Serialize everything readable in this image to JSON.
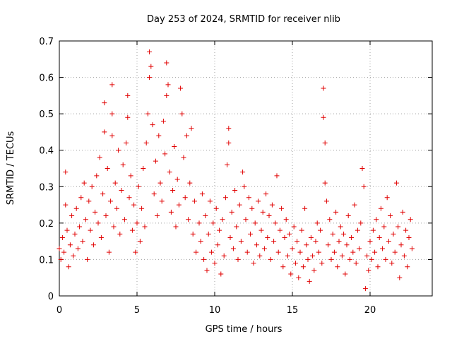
{
  "chart_data": {
    "type": "scatter",
    "title": "Day 253 of 2024, SRMTID for receiver nlib",
    "xlabel": "GPS time / hours",
    "ylabel": "SRMTID / TECUs",
    "xlim": [
      0,
      24
    ],
    "ylim": [
      0,
      0.7
    ],
    "xticks": [
      0,
      5,
      10,
      15,
      20
    ],
    "yticks": [
      0,
      0.1,
      0.2,
      0.3,
      0.4,
      0.5,
      0.6,
      0.7
    ],
    "xtick_labels": [
      "0",
      "5",
      "10",
      "15",
      "20"
    ],
    "ytick_labels": [
      "0",
      "0.1",
      "0.2",
      "0.3",
      "0.4",
      "0.5",
      "0.6",
      "0.7"
    ],
    "grid": true,
    "marker": "plus",
    "color": "#e00000",
    "series": [
      {
        "name": "SRMTID",
        "points": [
          [
            0.0,
            0.13
          ],
          [
            0.1,
            0.1
          ],
          [
            0.2,
            0.16
          ],
          [
            0.3,
            0.12
          ],
          [
            0.4,
            0.34
          ],
          [
            0.4,
            0.25
          ],
          [
            0.5,
            0.18
          ],
          [
            0.6,
            0.08
          ],
          [
            0.7,
            0.14
          ],
          [
            0.8,
            0.22
          ],
          [
            0.9,
            0.11
          ],
          [
            1.0,
            0.17
          ],
          [
            1.1,
            0.24
          ],
          [
            1.2,
            0.13
          ],
          [
            1.3,
            0.19
          ],
          [
            1.4,
            0.27
          ],
          [
            1.5,
            0.15
          ],
          [
            1.6,
            0.31
          ],
          [
            1.7,
            0.21
          ],
          [
            1.8,
            0.1
          ],
          [
            1.9,
            0.26
          ],
          [
            2.0,
            0.18
          ],
          [
            2.1,
            0.3
          ],
          [
            2.2,
            0.14
          ],
          [
            2.3,
            0.23
          ],
          [
            2.4,
            0.33
          ],
          [
            2.5,
            0.2
          ],
          [
            2.6,
            0.38
          ],
          [
            2.7,
            0.16
          ],
          [
            2.8,
            0.28
          ],
          [
            2.9,
            0.45
          ],
          [
            2.9,
            0.53
          ],
          [
            3.0,
            0.22
          ],
          [
            3.1,
            0.35
          ],
          [
            3.2,
            0.12
          ],
          [
            3.3,
            0.26
          ],
          [
            3.4,
            0.5
          ],
          [
            3.4,
            0.58
          ],
          [
            3.4,
            0.44
          ],
          [
            3.5,
            0.19
          ],
          [
            3.6,
            0.31
          ],
          [
            3.7,
            0.24
          ],
          [
            3.8,
            0.4
          ],
          [
            3.9,
            0.17
          ],
          [
            4.0,
            0.29
          ],
          [
            4.1,
            0.36
          ],
          [
            4.2,
            0.21
          ],
          [
            4.3,
            0.42
          ],
          [
            4.4,
            0.49
          ],
          [
            4.4,
            0.55
          ],
          [
            4.5,
            0.27
          ],
          [
            4.6,
            0.33
          ],
          [
            4.7,
            0.18
          ],
          [
            4.8,
            0.25
          ],
          [
            4.9,
            0.12
          ],
          [
            5.0,
            0.2
          ],
          [
            5.1,
            0.3
          ],
          [
            5.2,
            0.15
          ],
          [
            5.3,
            0.24
          ],
          [
            5.4,
            0.35
          ],
          [
            5.5,
            0.19
          ],
          [
            5.6,
            0.42
          ],
          [
            5.7,
            0.5
          ],
          [
            5.8,
            0.6
          ],
          [
            5.8,
            0.67
          ],
          [
            5.9,
            0.63
          ],
          [
            6.0,
            0.47
          ],
          [
            6.1,
            0.28
          ],
          [
            6.2,
            0.37
          ],
          [
            6.3,
            0.22
          ],
          [
            6.4,
            0.44
          ],
          [
            6.5,
            0.31
          ],
          [
            6.6,
            0.26
          ],
          [
            6.7,
            0.48
          ],
          [
            6.8,
            0.39
          ],
          [
            6.9,
            0.55
          ],
          [
            6.9,
            0.64
          ],
          [
            7.0,
            0.58
          ],
          [
            7.1,
            0.34
          ],
          [
            7.2,
            0.23
          ],
          [
            7.3,
            0.29
          ],
          [
            7.4,
            0.41
          ],
          [
            7.5,
            0.19
          ],
          [
            7.6,
            0.32
          ],
          [
            7.7,
            0.25
          ],
          [
            7.8,
            0.57
          ],
          [
            7.9,
            0.5
          ],
          [
            8.0,
            0.38
          ],
          [
            8.1,
            0.27
          ],
          [
            8.2,
            0.44
          ],
          [
            8.3,
            0.21
          ],
          [
            8.4,
            0.31
          ],
          [
            8.5,
            0.46
          ],
          [
            8.6,
            0.17
          ],
          [
            8.7,
            0.26
          ],
          [
            8.8,
            0.12
          ],
          [
            9.0,
            0.2
          ],
          [
            9.1,
            0.15
          ],
          [
            9.2,
            0.28
          ],
          [
            9.3,
            0.1
          ],
          [
            9.4,
            0.22
          ],
          [
            9.5,
            0.07
          ],
          [
            9.6,
            0.17
          ],
          [
            9.7,
            0.26
          ],
          [
            9.8,
            0.12
          ],
          [
            9.9,
            0.2
          ],
          [
            10.0,
            0.09
          ],
          [
            10.1,
            0.24
          ],
          [
            10.2,
            0.14
          ],
          [
            10.3,
            0.18
          ],
          [
            10.4,
            0.06
          ],
          [
            10.5,
            0.21
          ],
          [
            10.6,
            0.11
          ],
          [
            10.7,
            0.27
          ],
          [
            10.8,
            0.36
          ],
          [
            10.9,
            0.46
          ],
          [
            10.9,
            0.42
          ],
          [
            11.0,
            0.16
          ],
          [
            11.1,
            0.23
          ],
          [
            11.2,
            0.13
          ],
          [
            11.3,
            0.29
          ],
          [
            11.4,
            0.19
          ],
          [
            11.5,
            0.1
          ],
          [
            11.6,
            0.25
          ],
          [
            11.7,
            0.15
          ],
          [
            11.8,
            0.34
          ],
          [
            11.9,
            0.3
          ],
          [
            12.0,
            0.21
          ],
          [
            12.1,
            0.12
          ],
          [
            12.2,
            0.27
          ],
          [
            12.3,
            0.17
          ],
          [
            12.4,
            0.24
          ],
          [
            12.5,
            0.09
          ],
          [
            12.6,
            0.2
          ],
          [
            12.7,
            0.14
          ],
          [
            12.8,
            0.26
          ],
          [
            12.9,
            0.11
          ],
          [
            13.0,
            0.18
          ],
          [
            13.1,
            0.23
          ],
          [
            13.2,
            0.13
          ],
          [
            13.3,
            0.28
          ],
          [
            13.4,
            0.16
          ],
          [
            13.5,
            0.22
          ],
          [
            13.6,
            0.1
          ],
          [
            13.7,
            0.25
          ],
          [
            13.8,
            0.15
          ],
          [
            13.9,
            0.2
          ],
          [
            14.0,
            0.33
          ],
          [
            14.1,
            0.12
          ],
          [
            14.2,
            0.18
          ],
          [
            14.3,
            0.24
          ],
          [
            14.4,
            0.08
          ],
          [
            14.5,
            0.16
          ],
          [
            14.6,
            0.21
          ],
          [
            14.7,
            0.11
          ],
          [
            14.8,
            0.17
          ],
          [
            14.9,
            0.06
          ],
          [
            15.0,
            0.13
          ],
          [
            15.1,
            0.19
          ],
          [
            15.2,
            0.09
          ],
          [
            15.3,
            0.15
          ],
          [
            15.4,
            0.05
          ],
          [
            15.5,
            0.12
          ],
          [
            15.6,
            0.18
          ],
          [
            15.7,
            0.08
          ],
          [
            15.8,
            0.24
          ],
          [
            15.9,
            0.14
          ],
          [
            16.0,
            0.1
          ],
          [
            16.1,
            0.04
          ],
          [
            16.2,
            0.16
          ],
          [
            16.3,
            0.11
          ],
          [
            16.4,
            0.07
          ],
          [
            16.5,
            0.15
          ],
          [
            16.6,
            0.2
          ],
          [
            16.7,
            0.12
          ],
          [
            16.8,
            0.18
          ],
          [
            16.9,
            0.09
          ],
          [
            17.0,
            0.57
          ],
          [
            17.0,
            0.49
          ],
          [
            17.1,
            0.42
          ],
          [
            17.1,
            0.31
          ],
          [
            17.2,
            0.26
          ],
          [
            17.3,
            0.14
          ],
          [
            17.4,
            0.21
          ],
          [
            17.5,
            0.1
          ],
          [
            17.6,
            0.17
          ],
          [
            17.7,
            0.12
          ],
          [
            17.8,
            0.23
          ],
          [
            17.9,
            0.08
          ],
          [
            18.0,
            0.15
          ],
          [
            18.1,
            0.19
          ],
          [
            18.2,
            0.11
          ],
          [
            18.3,
            0.17
          ],
          [
            18.4,
            0.06
          ],
          [
            18.5,
            0.14
          ],
          [
            18.6,
            0.22
          ],
          [
            18.7,
            0.1
          ],
          [
            18.8,
            0.16
          ],
          [
            18.9,
            0.12
          ],
          [
            19.0,
            0.25
          ],
          [
            19.1,
            0.09
          ],
          [
            19.2,
            0.18
          ],
          [
            19.3,
            0.13
          ],
          [
            19.4,
            0.2
          ],
          [
            19.5,
            0.35
          ],
          [
            19.6,
            0.3
          ],
          [
            19.7,
            0.02
          ],
          [
            19.8,
            0.11
          ],
          [
            19.9,
            0.07
          ],
          [
            20.0,
            0.15
          ],
          [
            20.1,
            0.1
          ],
          [
            20.2,
            0.18
          ],
          [
            20.3,
            0.12
          ],
          [
            20.4,
            0.21
          ],
          [
            20.5,
            0.08
          ],
          [
            20.6,
            0.16
          ],
          [
            20.7,
            0.24
          ],
          [
            20.8,
            0.13
          ],
          [
            20.9,
            0.19
          ],
          [
            21.0,
            0.1
          ],
          [
            21.1,
            0.27
          ],
          [
            21.2,
            0.15
          ],
          [
            21.3,
            0.22
          ],
          [
            21.4,
            0.09
          ],
          [
            21.5,
            0.17
          ],
          [
            21.6,
            0.12
          ],
          [
            21.7,
            0.31
          ],
          [
            21.8,
            0.19
          ],
          [
            21.9,
            0.05
          ],
          [
            22.0,
            0.14
          ],
          [
            22.1,
            0.23
          ],
          [
            22.2,
            0.11
          ],
          [
            22.3,
            0.18
          ],
          [
            22.4,
            0.08
          ],
          [
            22.5,
            0.16
          ],
          [
            22.6,
            0.21
          ],
          [
            22.7,
            0.13
          ]
        ]
      }
    ]
  }
}
